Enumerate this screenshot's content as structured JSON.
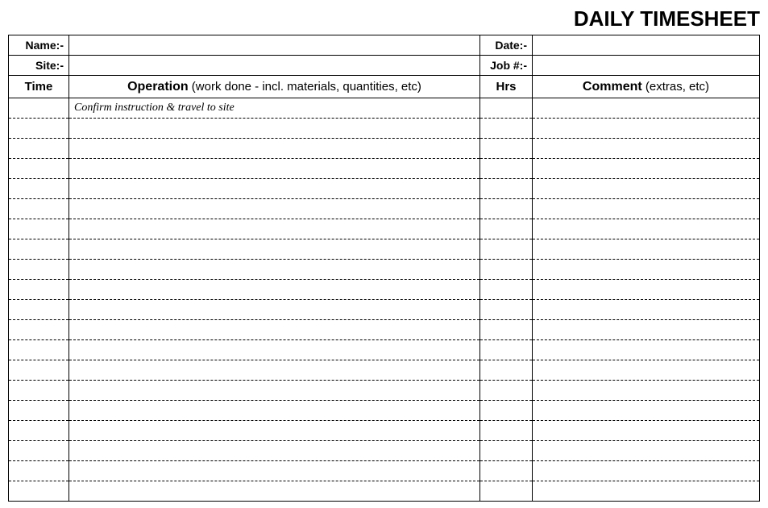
{
  "title": "DAILY TIMESHEET",
  "info": {
    "name_label": "Name:-",
    "name_value": "",
    "date_label": "Date:-",
    "date_value": "",
    "site_label": "Site:-",
    "site_value": "",
    "job_label": "Job #:-",
    "job_value": ""
  },
  "headers": {
    "time": "Time",
    "operation_bold": "Operation",
    "operation_paren": " (work done - incl. materials, quantities, etc)",
    "hrs": "Hrs",
    "comment_bold": "Comment",
    "comment_paren": " (extras, etc)"
  },
  "rows": [
    {
      "time": "",
      "operation": "Confirm instruction & travel to site",
      "hrs": "",
      "comment": ""
    },
    {
      "time": "",
      "operation": "",
      "hrs": "",
      "comment": ""
    },
    {
      "time": "",
      "operation": "",
      "hrs": "",
      "comment": ""
    },
    {
      "time": "",
      "operation": "",
      "hrs": "",
      "comment": ""
    },
    {
      "time": "",
      "operation": "",
      "hrs": "",
      "comment": ""
    },
    {
      "time": "",
      "operation": "",
      "hrs": "",
      "comment": ""
    },
    {
      "time": "",
      "operation": "",
      "hrs": "",
      "comment": ""
    },
    {
      "time": "",
      "operation": "",
      "hrs": "",
      "comment": ""
    },
    {
      "time": "",
      "operation": "",
      "hrs": "",
      "comment": ""
    },
    {
      "time": "",
      "operation": "",
      "hrs": "",
      "comment": ""
    },
    {
      "time": "",
      "operation": "",
      "hrs": "",
      "comment": ""
    },
    {
      "time": "",
      "operation": "",
      "hrs": "",
      "comment": ""
    },
    {
      "time": "",
      "operation": "",
      "hrs": "",
      "comment": ""
    },
    {
      "time": "",
      "operation": "",
      "hrs": "",
      "comment": ""
    },
    {
      "time": "",
      "operation": "",
      "hrs": "",
      "comment": ""
    },
    {
      "time": "",
      "operation": "",
      "hrs": "",
      "comment": ""
    },
    {
      "time": "",
      "operation": "",
      "hrs": "",
      "comment": ""
    },
    {
      "time": "",
      "operation": "",
      "hrs": "",
      "comment": ""
    },
    {
      "time": "",
      "operation": "",
      "hrs": "",
      "comment": ""
    },
    {
      "time": "",
      "operation": "",
      "hrs": "",
      "comment": ""
    }
  ]
}
